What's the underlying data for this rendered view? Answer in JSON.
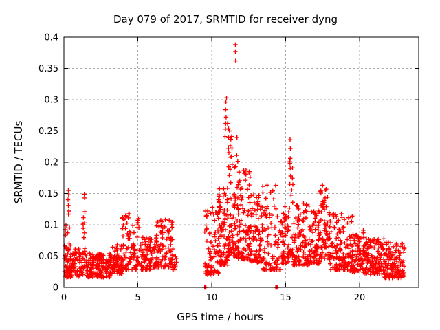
{
  "chart_data": {
    "type": "scatter",
    "title": "Day 079 of 2017, SRMTID for receiver dyng",
    "xlabel": "GPS time / hours",
    "ylabel": "SRMTID / TECUs",
    "xlim": [
      0,
      24
    ],
    "ylim": [
      0,
      0.4
    ],
    "xticks": [
      0,
      5,
      10,
      15,
      20
    ],
    "xtick_labels": [
      "0",
      "5",
      "10",
      "15",
      "20"
    ],
    "yticks": [
      0,
      0.05,
      0.1,
      0.15,
      0.2,
      0.25,
      0.3,
      0.35,
      0.4
    ],
    "ytick_labels": [
      "0",
      "0.05",
      "0.1",
      "0.15",
      "0.2",
      "0.25",
      "0.3",
      "0.35",
      "0.4"
    ],
    "grid": true,
    "grid_style": "dashed",
    "legend_position": "none",
    "marker": "plus",
    "marker_color": "#ff0000",
    "axis_color": "#000000",
    "grid_color": "#a8a8a8",
    "background": "#ffffff",
    "series": [
      {
        "name": "SRMTID",
        "feature_points": [
          [
            11.6,
            0.388
          ],
          [
            11.6,
            0.377
          ],
          [
            11.62,
            0.362
          ],
          [
            10.93,
            0.253
          ],
          [
            10.95,
            0.262
          ],
          [
            10.97,
            0.272
          ],
          [
            10.94,
            0.284
          ],
          [
            10.96,
            0.296
          ],
          [
            11.0,
            0.303
          ],
          [
            11.07,
            0.262
          ],
          [
            10.9,
            0.241
          ],
          [
            15.3,
            0.236
          ],
          [
            15.32,
            0.222
          ],
          [
            15.28,
            0.201
          ],
          [
            15.31,
            0.19
          ],
          [
            15.34,
            0.178
          ],
          [
            15.29,
            0.165
          ],
          [
            0.3,
            0.155
          ],
          [
            0.32,
            0.148
          ],
          [
            0.28,
            0.14
          ],
          [
            0.3,
            0.131
          ],
          [
            0.33,
            0.122
          ],
          [
            0.31,
            0.117
          ],
          [
            1.38,
            0.149
          ],
          [
            1.4,
            0.143
          ],
          [
            1.42,
            0.121
          ],
          [
            1.4,
            0.103
          ],
          [
            1.39,
            0.087
          ],
          [
            12.55,
            0.185
          ],
          [
            12.6,
            0.176
          ],
          [
            19.5,
            0.114
          ],
          [
            19.46,
            0.105
          ],
          [
            9.52,
            0
          ],
          [
            9.55,
            0
          ],
          [
            9.58,
            0
          ],
          [
            9.61,
            0
          ],
          [
            14.33,
            0
          ],
          [
            14.38,
            0
          ],
          [
            14.43,
            0
          ]
        ],
        "bands": [
          [
            0.02,
            0.5,
            0.025,
            0.12,
            30,
            2.0
          ],
          [
            0.05,
            1.3,
            0.016,
            0.062,
            90,
            1.4
          ],
          [
            1.28,
            1.55,
            0.03,
            0.12,
            12,
            1.7
          ],
          [
            1.5,
            3.1,
            0.016,
            0.055,
            150,
            1.4
          ],
          [
            3.1,
            3.95,
            0.022,
            0.07,
            80,
            1.5
          ],
          [
            3.95,
            5.1,
            0.028,
            0.118,
            95,
            1.8
          ],
          [
            5.1,
            5.95,
            0.028,
            0.08,
            70,
            1.6
          ],
          [
            5.95,
            7.4,
            0.032,
            0.108,
            110,
            1.6
          ],
          [
            7.35,
            7.62,
            0.028,
            0.062,
            16,
            1.4
          ],
          [
            9.5,
            10.45,
            0.02,
            0.128,
            85,
            1.7
          ],
          [
            10.45,
            11.1,
            0.035,
            0.16,
            80,
            1.6
          ],
          [
            11.05,
            11.8,
            0.05,
            0.265,
            95,
            2.1
          ],
          [
            11.8,
            12.55,
            0.045,
            0.19,
            85,
            2.0
          ],
          [
            12.55,
            13.35,
            0.04,
            0.15,
            80,
            1.8
          ],
          [
            13.35,
            14.65,
            0.028,
            0.168,
            100,
            2.2
          ],
          [
            14.65,
            15.18,
            0.038,
            0.13,
            55,
            1.7
          ],
          [
            15.18,
            15.52,
            0.05,
            0.21,
            30,
            1.9
          ],
          [
            15.5,
            16.65,
            0.035,
            0.135,
            95,
            1.8
          ],
          [
            16.65,
            17.35,
            0.038,
            0.128,
            75,
            1.7
          ],
          [
            17.35,
            17.95,
            0.045,
            0.17,
            65,
            1.6
          ],
          [
            17.95,
            19.35,
            0.028,
            0.122,
            120,
            1.9
          ],
          [
            19.35,
            20.35,
            0.024,
            0.092,
            100,
            1.7
          ],
          [
            20.35,
            21.65,
            0.02,
            0.078,
            120,
            1.5
          ],
          [
            21.65,
            23.05,
            0.015,
            0.073,
            130,
            1.5
          ]
        ]
      }
    ]
  }
}
